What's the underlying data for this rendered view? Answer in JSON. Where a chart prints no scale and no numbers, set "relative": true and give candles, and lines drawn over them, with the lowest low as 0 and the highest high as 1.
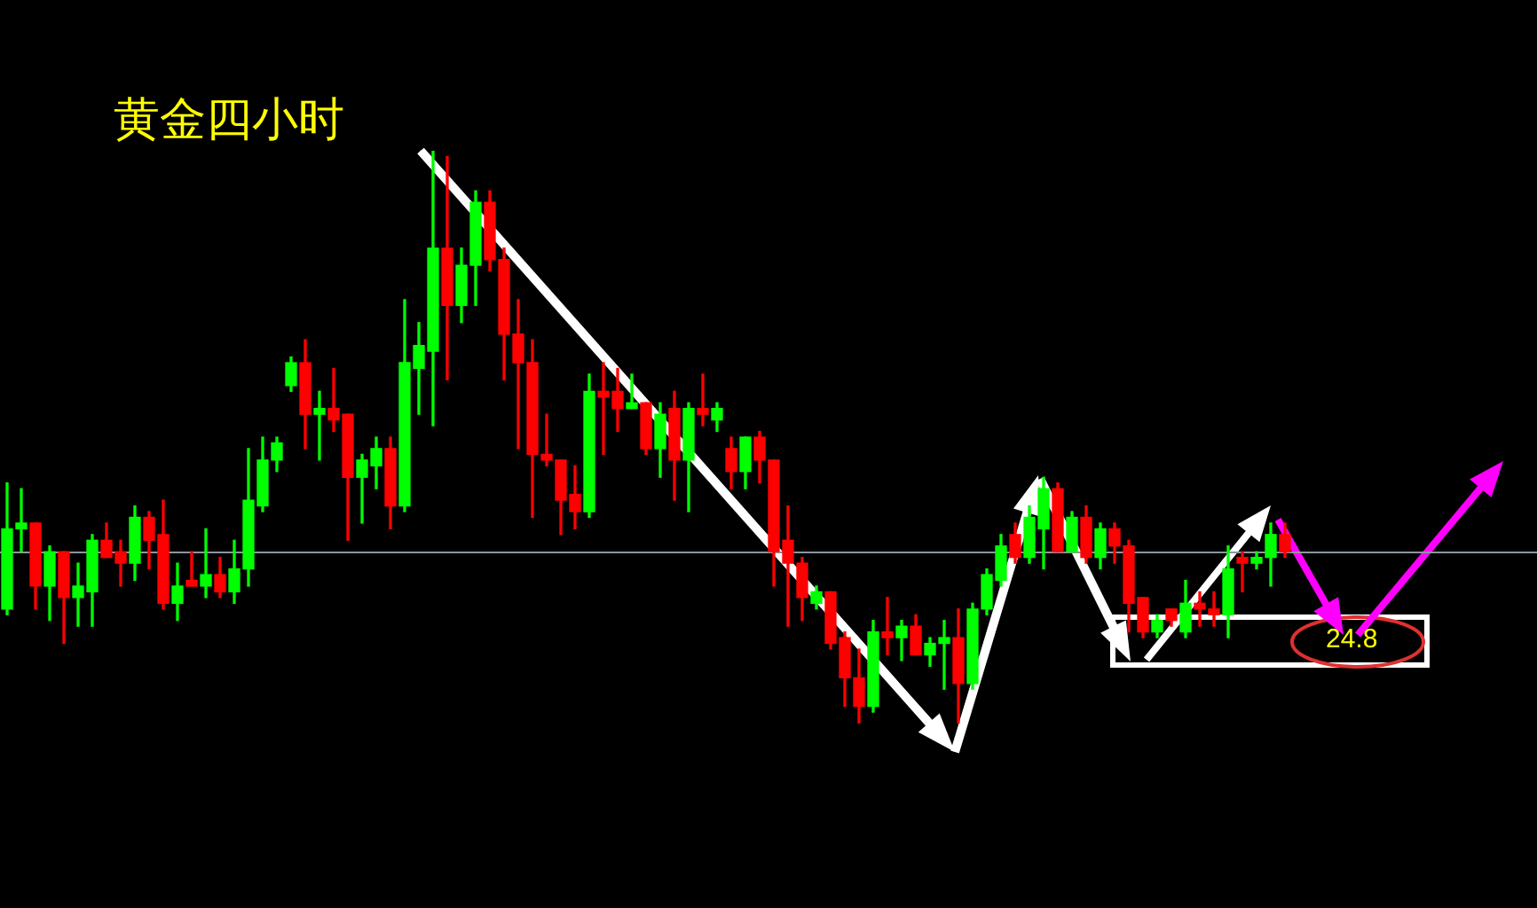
{
  "chart_data": {
    "type": "candlestick",
    "title": "黄金四小时",
    "relative": true,
    "categories": [
      null,
      null,
      null,
      null,
      null,
      null,
      null,
      null,
      null,
      null,
      null,
      null,
      null,
      null,
      null,
      null,
      null,
      null,
      null,
      null,
      null,
      null,
      null,
      null,
      null,
      null,
      null,
      null,
      null,
      null,
      null,
      null,
      null,
      null,
      null,
      null,
      null,
      null,
      null,
      null,
      null,
      null,
      null,
      null,
      null,
      null,
      null,
      null,
      null,
      null,
      null,
      null,
      null,
      null,
      null,
      null,
      null,
      null,
      null,
      null,
      null,
      null,
      null,
      null,
      null,
      null,
      null,
      null,
      null,
      null,
      null,
      null,
      null,
      null,
      null,
      null,
      null,
      null,
      null,
      null,
      null,
      null,
      null,
      null,
      null,
      null,
      null,
      null,
      null,
      null,
      null
    ],
    "ohlc": [
      [
        0.2,
        0.42,
        0.19,
        0.34
      ],
      [
        0.34,
        0.41,
        0.3,
        0.35
      ],
      [
        0.35,
        0.35,
        0.2,
        0.24
      ],
      [
        0.24,
        0.31,
        0.18,
        0.3
      ],
      [
        0.3,
        0.3,
        0.14,
        0.22
      ],
      [
        0.22,
        0.28,
        0.17,
        0.24
      ],
      [
        0.23,
        0.33,
        0.17,
        0.32
      ],
      [
        0.32,
        0.35,
        0.29,
        0.29
      ],
      [
        0.3,
        0.32,
        0.24,
        0.28
      ],
      [
        0.28,
        0.38,
        0.25,
        0.36
      ],
      [
        0.36,
        0.37,
        0.27,
        0.32
      ],
      [
        0.33,
        0.39,
        0.2,
        0.21
      ],
      [
        0.21,
        0.28,
        0.18,
        0.24
      ],
      [
        0.25,
        0.3,
        0.24,
        0.24
      ],
      [
        0.24,
        0.34,
        0.22,
        0.26
      ],
      [
        0.26,
        0.29,
        0.22,
        0.23
      ],
      [
        0.23,
        0.32,
        0.21,
        0.27
      ],
      [
        0.27,
        0.48,
        0.24,
        0.39
      ],
      [
        0.38,
        0.5,
        0.37,
        0.46
      ],
      [
        0.46,
        0.5,
        0.44,
        0.49
      ],
      [
        0.59,
        0.64,
        0.58,
        0.63
      ],
      [
        0.63,
        0.67,
        0.48,
        0.54
      ],
      [
        0.54,
        0.58,
        0.46,
        0.55
      ],
      [
        0.55,
        0.62,
        0.51,
        0.53
      ],
      [
        0.54,
        0.54,
        0.32,
        0.43
      ],
      [
        0.43,
        0.47,
        0.35,
        0.46
      ],
      [
        0.45,
        0.5,
        0.41,
        0.48
      ],
      [
        0.48,
        0.5,
        0.34,
        0.38
      ],
      [
        0.38,
        0.74,
        0.37,
        0.63
      ],
      [
        0.62,
        0.7,
        0.54,
        0.66
      ],
      [
        0.65,
        1,
        0.52,
        0.83
      ],
      [
        0.83,
        0.99,
        0.6,
        0.73
      ],
      [
        0.73,
        0.83,
        0.7,
        0.8
      ],
      [
        0.8,
        0.93,
        0.73,
        0.91
      ],
      [
        0.91,
        0.93,
        0.79,
        0.81
      ],
      [
        0.81,
        0.83,
        0.6,
        0.68
      ],
      [
        0.68,
        0.74,
        0.48,
        0.63
      ],
      [
        0.63,
        0.67,
        0.36,
        0.47
      ],
      [
        0.47,
        0.54,
        0.45,
        0.46
      ],
      [
        0.46,
        0.46,
        0.33,
        0.39
      ],
      [
        0.4,
        0.45,
        0.34,
        0.37
      ],
      [
        0.37,
        0.61,
        0.36,
        0.58
      ],
      [
        0.58,
        0.63,
        0.47,
        0.57
      ],
      [
        0.58,
        0.62,
        0.51,
        0.55
      ],
      [
        0.55,
        0.61,
        0.55,
        0.56
      ],
      [
        0.56,
        0.56,
        0.47,
        0.48
      ],
      [
        0.48,
        0.56,
        0.43,
        0.54
      ],
      [
        0.55,
        0.58,
        0.39,
        0.46
      ],
      [
        0.46,
        0.56,
        0.37,
        0.55
      ],
      [
        0.55,
        0.61,
        0.52,
        0.54
      ],
      [
        0.53,
        0.56,
        0.51,
        0.55
      ],
      [
        0.48,
        0.5,
        0.41,
        0.44
      ],
      [
        0.44,
        0.5,
        0.41,
        0.5
      ],
      [
        0.5,
        0.51,
        0.42,
        0.46
      ],
      [
        0.46,
        0.46,
        0.24,
        0.3
      ],
      [
        0.32,
        0.38,
        0.17,
        0.28
      ],
      [
        0.28,
        0.29,
        0.18,
        0.22
      ],
      [
        0.21,
        0.24,
        0.2,
        0.23
      ],
      [
        0.23,
        0.23,
        0.13,
        0.14
      ],
      [
        0.15,
        0.16,
        0.03,
        0.08
      ],
      [
        0.08,
        0.13,
        0,
        0.03
      ],
      [
        0.03,
        0.18,
        0.02,
        0.16
      ],
      [
        0.16,
        0.22,
        0.12,
        0.15
      ],
      [
        0.15,
        0.18,
        0.11,
        0.17
      ],
      [
        0.17,
        0.19,
        0.12,
        0.12
      ],
      [
        0.12,
        0.15,
        0.1,
        0.14
      ],
      [
        0.14,
        0.18,
        0.06,
        0.15
      ],
      [
        0.15,
        0.2,
        0,
        0.07
      ],
      [
        0.07,
        0.21,
        0.06,
        0.2
      ],
      [
        0.2,
        0.27,
        0.19,
        0.26
      ],
      [
        0.25,
        0.33,
        0.24,
        0.31
      ],
      [
        0.33,
        0.35,
        0.28,
        0.29
      ],
      [
        0.29,
        0.38,
        0.28,
        0.36
      ],
      [
        0.34,
        0.43,
        0.27,
        0.41
      ],
      [
        0.41,
        0.42,
        0.3,
        0.3
      ],
      [
        0.3,
        0.37,
        0.3,
        0.36
      ],
      [
        0.36,
        0.38,
        0.28,
        0.29
      ],
      [
        0.29,
        0.35,
        0.27,
        0.34
      ],
      [
        0.34,
        0.35,
        0.28,
        0.31
      ],
      [
        0.31,
        0.32,
        0.16,
        0.21
      ],
      [
        0.22,
        0.22,
        0.15,
        0.16
      ],
      [
        0.16,
        0.19,
        0.15,
        0.18
      ],
      [
        0.2,
        0.2,
        0.17,
        0.18
      ],
      [
        0.16,
        0.25,
        0.15,
        0.21
      ],
      [
        0.21,
        0.23,
        0.17,
        0.2
      ],
      [
        0.2,
        0.23,
        0.17,
        0.19
      ],
      [
        0.19,
        0.31,
        0.15,
        0.27
      ],
      [
        0.29,
        0.3,
        0.23,
        0.28
      ],
      [
        0.28,
        0.3,
        0.27,
        0.29
      ],
      [
        0.29,
        0.35,
        0.24,
        0.33
      ],
      [
        0.33,
        0.35,
        0.29,
        0.3
      ]
    ],
    "colors": [
      "#00ff00",
      "#00ff00",
      "#ff0000",
      "#00ff00",
      "#ff0000",
      "#00ff00",
      "#00ff00",
      "#ff0000",
      "#ff0000",
      "#00ff00",
      "#ff0000",
      "#ff0000",
      "#00ff00",
      "#ff0000",
      "#00ff00",
      "#ff0000",
      "#00ff00",
      "#00ff00",
      "#00ff00",
      "#00ff00",
      "#00ff00",
      "#ff0000",
      "#00ff00",
      "#ff0000",
      "#ff0000",
      "#00ff00",
      "#00ff00",
      "#ff0000",
      "#00ff00",
      "#00ff00",
      "#00ff00",
      "#ff0000",
      "#00ff00",
      "#00ff00",
      "#ff0000",
      "#ff0000",
      "#ff0000",
      "#ff0000",
      "#ff0000",
      "#ff0000",
      "#ff0000",
      "#00ff00",
      "#ff0000",
      "#ff0000",
      "#00ff00",
      "#ff0000",
      "#00ff00",
      "#ff0000",
      "#00ff00",
      "#ff0000",
      "#00ff00",
      "#ff0000",
      "#00ff00",
      "#ff0000",
      "#ff0000",
      "#ff0000",
      "#ff0000",
      "#00ff00",
      "#ff0000",
      "#ff0000",
      "#ff0000",
      "#00ff00",
      "#ff0000",
      "#00ff00",
      "#ff0000",
      "#00ff00",
      "#00ff00",
      "#ff0000",
      "#00ff00",
      "#00ff00",
      "#00ff00",
      "#ff0000",
      "#00ff00",
      "#00ff00",
      "#ff0000",
      "#00ff00",
      "#ff0000",
      "#00ff00",
      "#ff0000",
      "#ff0000",
      "#ff0000",
      "#00ff00",
      "#ff0000",
      "#00ff00",
      "#ff0000",
      "#ff0000",
      "#00ff00",
      "#ff0000",
      "#00ff00",
      "#00ff00",
      "#ff0000"
    ],
    "ref_lines": [
      {
        "axis": "y",
        "value": 0.3,
        "color": "#8c96a0"
      }
    ],
    "annotations": [
      "24.8"
    ]
  }
}
